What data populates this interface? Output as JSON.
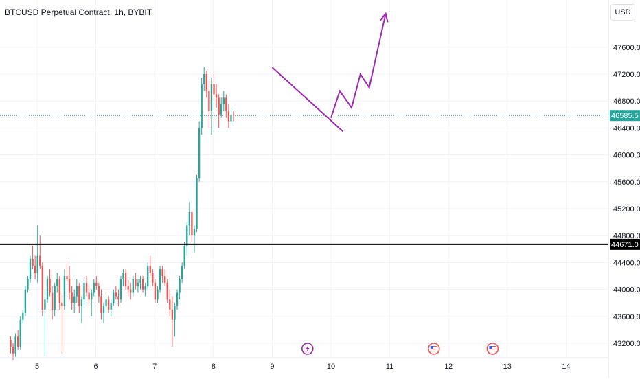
{
  "header": {
    "title": "BTCUSD Perpetual Contract, 1h, BYBIT",
    "currency": "USD"
  },
  "colors": {
    "up": "#26a69a",
    "down": "#ef5350",
    "drawing": "#9c27b0",
    "level": "#000000",
    "last_price_bg": "#26a69a"
  },
  "icons": {
    "lightning": "lightning-icon",
    "flag": "us-flag-icon"
  },
  "chart_data": {
    "type": "candlestick",
    "x_ticks": [
      "5",
      "6",
      "7",
      "8",
      "9",
      "10",
      "11",
      "12",
      "13",
      "14"
    ],
    "y_ticks": [
      "47600.0",
      "47200.0",
      "46800.0",
      "46400.0",
      "46000.0",
      "45600.0",
      "45200.0",
      "44800.0",
      "44400.0",
      "44000.0",
      "43600.0",
      "43200.0"
    ],
    "ylim": [
      43000,
      48150
    ],
    "last_price": {
      "value": 46585.5,
      "label": "46585.5"
    },
    "level": {
      "value": 44671,
      "label": "44671.0"
    },
    "grid": true,
    "candles_from_day": 4.55,
    "candles_per_day": 24,
    "candles": [
      [
        43250,
        43300,
        43050,
        43150
      ],
      [
        43150,
        43200,
        42950,
        43050
      ],
      [
        43050,
        43350,
        43000,
        43300
      ],
      [
        43300,
        43400,
        43100,
        43150
      ],
      [
        43150,
        43600,
        43100,
        43550
      ],
      [
        43550,
        43700,
        43500,
        43650
      ],
      [
        43650,
        44050,
        43600,
        44000
      ],
      [
        44000,
        44200,
        43950,
        44150
      ],
      [
        44150,
        44500,
        44100,
        44450
      ],
      [
        44450,
        44650,
        44300,
        44350
      ],
      [
        44350,
        44500,
        44150,
        44250
      ],
      [
        44250,
        44950,
        44100,
        44500
      ],
      [
        44500,
        44800,
        44300,
        44350
      ],
      [
        44350,
        44400,
        43600,
        43700
      ],
      [
        43700,
        44000,
        43000,
        43850
      ],
      [
        43850,
        44200,
        43800,
        44150
      ],
      [
        44150,
        44300,
        43900,
        43950
      ],
      [
        43950,
        44050,
        43550,
        43700
      ],
      [
        43700,
        44100,
        43600,
        44050
      ],
      [
        44050,
        44250,
        43950,
        44150
      ],
      [
        44150,
        44200,
        43700,
        43800
      ],
      [
        43800,
        43950,
        43050,
        43750
      ],
      [
        43750,
        44300,
        43700,
        44200
      ],
      [
        44200,
        44400,
        44100,
        44150
      ],
      [
        44150,
        44350,
        43850,
        43950
      ],
      [
        43950,
        44050,
        43700,
        43800
      ],
      [
        43800,
        44000,
        43650,
        43900
      ],
      [
        43900,
        44150,
        43800,
        44050
      ],
      [
        44050,
        44100,
        43650,
        43750
      ],
      [
        43750,
        43900,
        43500,
        43850
      ],
      [
        43850,
        44150,
        43750,
        44100
      ],
      [
        44100,
        44200,
        43900,
        43950
      ],
      [
        43950,
        44050,
        43750,
        43850
      ],
      [
        43850,
        44000,
        43600,
        43950
      ],
      [
        43950,
        44150,
        43900,
        44100
      ],
      [
        44100,
        44200,
        44000,
        44050
      ],
      [
        44050,
        44100,
        43800,
        43900
      ],
      [
        43900,
        44000,
        43550,
        43650
      ],
      [
        43650,
        43800,
        43500,
        43750
      ],
      [
        43750,
        43900,
        43650,
        43850
      ],
      [
        43850,
        43900,
        43650,
        43700
      ],
      [
        43700,
        43850,
        43600,
        43800
      ],
      [
        43800,
        44000,
        43750,
        43950
      ],
      [
        43950,
        44050,
        43850,
        43900
      ],
      [
        43900,
        44000,
        43750,
        43850
      ],
      [
        43850,
        44200,
        43800,
        44150
      ],
      [
        44150,
        44300,
        44050,
        44250
      ],
      [
        44250,
        44300,
        44000,
        44050
      ],
      [
        44050,
        44150,
        43900,
        44000
      ],
      [
        44000,
        44100,
        43850,
        43950
      ],
      [
        43950,
        44200,
        43900,
        44150
      ],
      [
        44150,
        44250,
        44000,
        44050
      ],
      [
        44050,
        44150,
        43950,
        44100
      ],
      [
        44100,
        44200,
        44000,
        44150
      ],
      [
        44150,
        44200,
        43950,
        44000
      ],
      [
        44000,
        44100,
        43900,
        44050
      ],
      [
        44050,
        44400,
        44000,
        44350
      ],
      [
        44350,
        44500,
        44200,
        44250
      ],
      [
        44250,
        44300,
        44050,
        44100
      ],
      [
        44100,
        44150,
        43800,
        43850
      ],
      [
        43850,
        44050,
        43800,
        44000
      ],
      [
        44000,
        44350,
        43950,
        44300
      ],
      [
        44300,
        44350,
        44100,
        44200
      ],
      [
        44200,
        44300,
        44050,
        44100
      ],
      [
        44100,
        44150,
        43800,
        43850
      ],
      [
        43850,
        44000,
        43600,
        43700
      ],
      [
        43700,
        43900,
        43150,
        43550
      ],
      [
        43550,
        43800,
        43300,
        43750
      ],
      [
        43750,
        44000,
        43700,
        43950
      ],
      [
        43950,
        44200,
        43850,
        44150
      ],
      [
        44150,
        44400,
        44100,
        44350
      ],
      [
        44350,
        44700,
        44300,
        44650
      ],
      [
        44650,
        45000,
        44500,
        44950
      ],
      [
        44950,
        45300,
        44800,
        45150
      ],
      [
        45150,
        45150,
        44700,
        44800
      ],
      [
        44800,
        44950,
        44550,
        44900
      ],
      [
        44900,
        45700,
        44850,
        45650
      ],
      [
        45650,
        46500,
        45600,
        46400
      ],
      [
        46400,
        47150,
        46300,
        47050
      ],
      [
        47050,
        47300,
        46950,
        47200
      ],
      [
        47200,
        47250,
        46850,
        46950
      ],
      [
        46950,
        47100,
        46400,
        46650
      ],
      [
        46650,
        47150,
        46300,
        47050
      ],
      [
        47050,
        47200,
        46800,
        46900
      ],
      [
        46900,
        47050,
        46700,
        46850
      ],
      [
        46850,
        46900,
        46400,
        46600
      ],
      [
        46600,
        46850,
        46550,
        46750
      ],
      [
        46750,
        46950,
        46650,
        46850
      ],
      [
        46850,
        46900,
        46550,
        46650
      ],
      [
        46650,
        46750,
        46400,
        46500
      ],
      [
        46500,
        46700,
        46450,
        46600
      ],
      [
        46600,
        46650,
        46500,
        46585.5
      ]
    ],
    "drawings": {
      "trendline": [
        [
          9.0,
          47300
        ],
        [
          10.2,
          46350
        ]
      ],
      "path": [
        [
          10.0,
          46550
        ],
        [
          10.15,
          46950
        ],
        [
          10.35,
          46700
        ],
        [
          10.5,
          47200
        ],
        [
          10.65,
          47000
        ],
        [
          10.93,
          48100
        ]
      ]
    },
    "events": [
      {
        "day": 9.6,
        "type": "lightning"
      },
      {
        "day": 11.75,
        "type": "flag"
      },
      {
        "day": 12.75,
        "type": "flag"
      }
    ]
  }
}
